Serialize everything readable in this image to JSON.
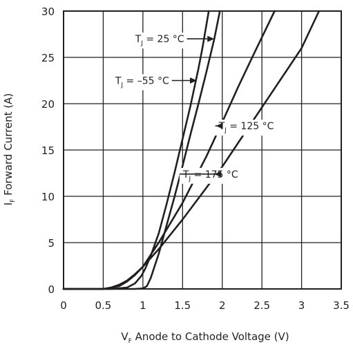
{
  "chart_data": {
    "type": "line",
    "xlabel": {
      "symbol": "V",
      "subscript": "F",
      "text": " Anode to Cathode Voltage (V)"
    },
    "ylabel": {
      "symbol": "I",
      "subscript": "F",
      "text": " Forward Current (A)"
    },
    "xlim": [
      0,
      3.5
    ],
    "ylim": [
      0,
      30
    ],
    "xticks": [
      "0",
      "0.5",
      "1",
      "1.5",
      "2",
      "2.5",
      "3",
      "3.5"
    ],
    "yticks": [
      "0",
      "5",
      "10",
      "15",
      "20",
      "25",
      "30"
    ],
    "grid": true,
    "series": [
      {
        "name": "TJ = 25 °C",
        "label": {
          "pre": "T",
          "sub": "J",
          "post": " = 25 °C"
        },
        "x": [
          0,
          0.6,
          0.8,
          0.9,
          0.98,
          1.03,
          1.1,
          1.2,
          1.3,
          1.4,
          1.5,
          1.6,
          1.7,
          1.75,
          1.83
        ],
        "y": [
          0,
          0,
          0.15,
          0.6,
          1.4,
          2.2,
          3.6,
          6.0,
          9.2,
          12.6,
          16.2,
          19.8,
          23.8,
          26.0,
          30
        ]
      },
      {
        "name": "TJ = −55 °C",
        "label": {
          "pre": "T",
          "sub": "J",
          "post": " = –55 °C"
        },
        "x": [
          0,
          0.9,
          1.0,
          1.05,
          1.1,
          1.2,
          1.3,
          1.4,
          1.5,
          1.6,
          1.7,
          1.8,
          1.9,
          1.97
        ],
        "y": [
          0,
          0,
          0.05,
          0.3,
          1.2,
          3.8,
          6.9,
          10.0,
          13.3,
          16.7,
          20.0,
          23.4,
          27.0,
          30
        ]
      },
      {
        "name": "TJ = 125 °C",
        "label": {
          "pre": "T",
          "sub": "J",
          "post": " = 125 °C"
        },
        "x": [
          0,
          0.5,
          0.7,
          0.8,
          0.9,
          1.0,
          1.2,
          1.5,
          1.8,
          2.0,
          2.2,
          2.4,
          2.66
        ],
        "y": [
          0,
          0,
          0.3,
          0.8,
          1.5,
          2.4,
          5.0,
          9.3,
          14.3,
          18.0,
          21.8,
          25.4,
          30
        ]
      },
      {
        "name": "TJ = 175 °C",
        "label": {
          "pre": "T",
          "sub": "J",
          "post": " = 175 °C"
        },
        "x": [
          0,
          0.5,
          0.6,
          0.7,
          0.8,
          0.9,
          1.0,
          1.2,
          1.5,
          2.0,
          2.5,
          3.0,
          3.22
        ],
        "y": [
          0,
          0,
          0.15,
          0.45,
          0.9,
          1.6,
          2.4,
          4.3,
          7.5,
          13.2,
          19.6,
          26.0,
          30
        ]
      }
    ],
    "annotations": [
      {
        "series": 0,
        "x_label_end": 1.52,
        "y": 27.0,
        "x_arrow": 1.9
      },
      {
        "series": 1,
        "x_label_end": 1.33,
        "y": 22.5,
        "x_arrow": 1.68
      },
      {
        "series": 2,
        "x_label_end": 2.65,
        "y": 17.6,
        "x_arrow": 1.92
      },
      {
        "series": 3,
        "x_label_end": 2.2,
        "y": 12.4,
        "x_arrow": 1.9
      }
    ]
  }
}
